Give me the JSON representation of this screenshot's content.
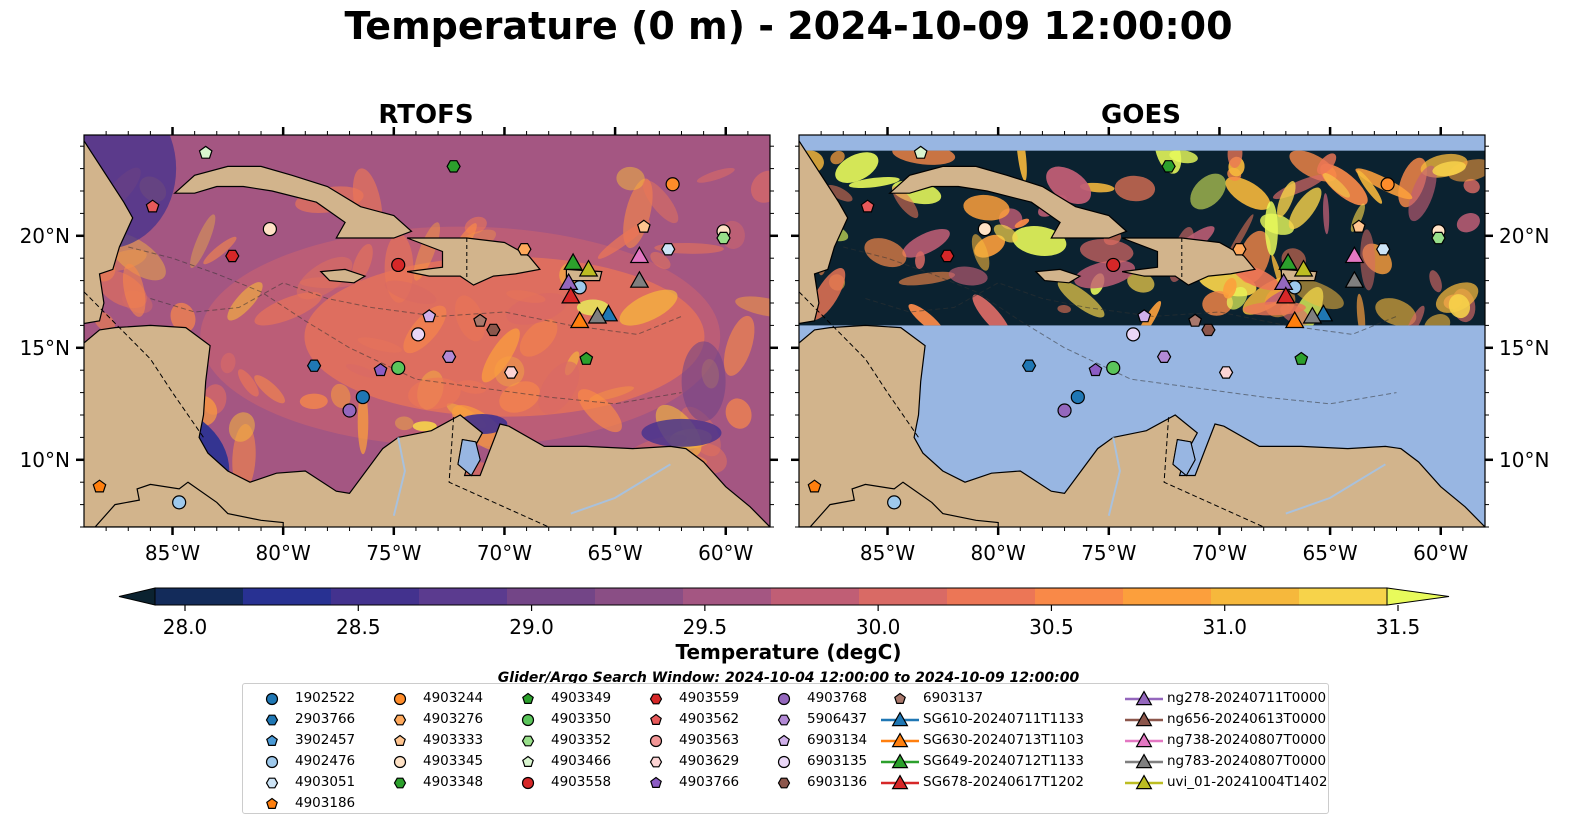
{
  "title": "Temperature (0 m) - 2024-10-09 12:00:00",
  "panels": [
    {
      "title": "RTOFS",
      "ocean": "rtofs"
    },
    {
      "title": "GOES",
      "ocean": "goes"
    }
  ],
  "map": {
    "lon_range": [
      -89,
      -58
    ],
    "lat_range": [
      7,
      24.5
    ],
    "lon_ticks": [
      -85,
      -80,
      -75,
      -70,
      -65,
      -60
    ],
    "lon_tick_labels": [
      "85°W",
      "80°W",
      "75°W",
      "70°W",
      "65°W",
      "60°W"
    ],
    "lat_ticks": [
      10,
      15,
      20
    ],
    "lat_tick_labels": [
      "10°N",
      "15°N",
      "20°N"
    ],
    "land_color": "#d2b48c",
    "nodata_color": "#98b6e2",
    "goes_data_lat_range": [
      16,
      23.8
    ]
  },
  "colorbar": {
    "label": "Temperature (degC)",
    "min": 28.0,
    "max": 31.5,
    "step": 0.25,
    "ticks": [
      28.0,
      28.5,
      29.0,
      29.5,
      30.0,
      30.5,
      31.0,
      31.5
    ],
    "tick_labels": [
      "28.0",
      "28.5",
      "29.0",
      "29.5",
      "30.0",
      "30.5",
      "31.0",
      "31.5"
    ],
    "colors": [
      "#0b2230",
      "#132b5a",
      "#283192",
      "#43328e",
      "#5b3b8f",
      "#734587",
      "#8a4e85",
      "#a45682",
      "#c05e75",
      "#d96a65",
      "#ec7656",
      "#f98948",
      "#fc9f3c",
      "#f6b83c",
      "#f7d34a",
      "#e8fa5b"
    ],
    "extend": "both"
  },
  "search_window": "Glider/Argo Search Window: 2024-10-04 12:00:00 to 2024-10-09 12:00:00",
  "legend_columns": [
    [
      {
        "label": "1902522",
        "marker": "circle",
        "color": "#1f77b4"
      },
      {
        "label": "2903766",
        "marker": "hexagon",
        "color": "#1f77b4"
      },
      {
        "label": "3902457",
        "marker": "pentagon",
        "color": "#4a9ad6"
      },
      {
        "label": "4902476",
        "marker": "circle",
        "color": "#9ec9ec"
      },
      {
        "label": "4903051",
        "marker": "hexagon",
        "color": "#cde4f6"
      },
      {
        "label": "4903186",
        "marker": "pentagon",
        "color": "#ff7f0e"
      }
    ],
    [
      {
        "label": "4903244",
        "marker": "circle",
        "color": "#ff8c2a"
      },
      {
        "label": "4903276",
        "marker": "hexagon",
        "color": "#ffa95c"
      },
      {
        "label": "4903333",
        "marker": "pentagon",
        "color": "#ffc48f"
      },
      {
        "label": "4903345",
        "marker": "circle",
        "color": "#ffe2c6"
      },
      {
        "label": "4903348",
        "marker": "hexagon",
        "color": "#2ca02c"
      }
    ],
    [
      {
        "label": "4903349",
        "marker": "pentagon",
        "color": "#2ca02c"
      },
      {
        "label": "4903350",
        "marker": "circle",
        "color": "#5bc55b"
      },
      {
        "label": "4903352",
        "marker": "hexagon",
        "color": "#98df8a"
      },
      {
        "label": "4903466",
        "marker": "pentagon",
        "color": "#d9f5cf"
      },
      {
        "label": "4903558",
        "marker": "circle",
        "color": "#d62728"
      }
    ],
    [
      {
        "label": "4903559",
        "marker": "hexagon",
        "color": "#d62728"
      },
      {
        "label": "4903562",
        "marker": "pentagon",
        "color": "#e8595a"
      },
      {
        "label": "4903563",
        "marker": "circle",
        "color": "#f29696"
      },
      {
        "label": "4903629",
        "marker": "hexagon",
        "color": "#fcd4d4"
      },
      {
        "label": "4903766",
        "marker": "pentagon",
        "color": "#8c5cc4"
      }
    ],
    [
      {
        "label": "4903768",
        "marker": "circle",
        "color": "#9467bd"
      },
      {
        "label": "5906437",
        "marker": "hexagon",
        "color": "#b38ad6"
      },
      {
        "label": "6903134",
        "marker": "pentagon",
        "color": "#d0b0ea"
      },
      {
        "label": "6903135",
        "marker": "circle",
        "color": "#ead7f7"
      },
      {
        "label": "6903136",
        "marker": "hexagon",
        "color": "#8c564b"
      }
    ],
    [
      {
        "label": "6903137",
        "marker": "pentagon",
        "color": "#a9786c"
      },
      {
        "label": "SG610-20240711T1133",
        "marker": "triangle-line",
        "color": "#1f77b4"
      },
      {
        "label": "SG630-20240713T1103",
        "marker": "triangle-line",
        "color": "#ff7f0e"
      },
      {
        "label": "SG649-20240712T1133",
        "marker": "triangle-line",
        "color": "#2ca02c"
      },
      {
        "label": "SG678-20240617T1202",
        "marker": "triangle-line",
        "color": "#d62728"
      }
    ],
    [
      {
        "label": "ng278-20240711T0000",
        "marker": "triangle-line",
        "color": "#9467bd"
      },
      {
        "label": "ng656-20240613T0000",
        "marker": "triangle-line",
        "color": "#8c564b"
      },
      {
        "label": "ng738-20240807T0000",
        "marker": "triangle-line",
        "color": "#e377c2"
      },
      {
        "label": "ng783-20240807T0000",
        "marker": "triangle-line",
        "color": "#7f7f7f"
      },
      {
        "label": "uvi_01-20241004T1402",
        "marker": "triangle-line",
        "color": "#bcbd22"
      }
    ]
  ],
  "observations": [
    {
      "lon": -88.3,
      "lat": 8.8,
      "marker": "pentagon",
      "color": "#ff7f0e"
    },
    {
      "lon": -84.7,
      "lat": 8.1,
      "marker": "circle",
      "color": "#9ec9ec"
    },
    {
      "lon": -83.5,
      "lat": 23.7,
      "marker": "pentagon",
      "color": "#d9f5cf"
    },
    {
      "lon": -85.9,
      "lat": 21.3,
      "marker": "pentagon",
      "color": "#e8595a"
    },
    {
      "lon": -82.3,
      "lat": 19.1,
      "marker": "hexagon",
      "color": "#d62728"
    },
    {
      "lon": -80.6,
      "lat": 20.3,
      "marker": "circle",
      "color": "#ffe2c6"
    },
    {
      "lon": -78.6,
      "lat": 14.2,
      "marker": "hexagon",
      "color": "#1f77b4"
    },
    {
      "lon": -77.0,
      "lat": 12.2,
      "marker": "circle",
      "color": "#9467bd"
    },
    {
      "lon": -76.4,
      "lat": 12.8,
      "marker": "circle",
      "color": "#1f77b4"
    },
    {
      "lon": -75.6,
      "lat": 14.0,
      "marker": "pentagon",
      "color": "#8c5cc4"
    },
    {
      "lon": -74.8,
      "lat": 14.1,
      "marker": "circle",
      "color": "#5bc55b"
    },
    {
      "lon": -74.8,
      "lat": 18.7,
      "marker": "circle",
      "color": "#d62728"
    },
    {
      "lon": -73.9,
      "lat": 15.6,
      "marker": "circle",
      "color": "#ead7f7"
    },
    {
      "lon": -73.4,
      "lat": 16.4,
      "marker": "pentagon",
      "color": "#d0b0ea"
    },
    {
      "lon": -72.5,
      "lat": 14.6,
      "marker": "hexagon",
      "color": "#b38ad6"
    },
    {
      "lon": -71.1,
      "lat": 16.2,
      "marker": "pentagon",
      "color": "#a9786c"
    },
    {
      "lon": -70.5,
      "lat": 15.8,
      "marker": "hexagon",
      "color": "#8c564b"
    },
    {
      "lon": -69.7,
      "lat": 13.9,
      "marker": "hexagon",
      "color": "#fcd4d4"
    },
    {
      "lon": -69.1,
      "lat": 19.4,
      "marker": "hexagon",
      "color": "#ffa95c"
    },
    {
      "lon": -66.3,
      "lat": 14.5,
      "marker": "pentagon",
      "color": "#2ca02c"
    },
    {
      "lon": -66.6,
      "lat": 17.7,
      "marker": "circle",
      "color": "#9ec9ec"
    },
    {
      "lon": -63.7,
      "lat": 20.4,
      "marker": "pentagon",
      "color": "#ffc48f"
    },
    {
      "lon": -62.4,
      "lat": 22.3,
      "marker": "circle",
      "color": "#ff8c2a"
    },
    {
      "lon": -62.6,
      "lat": 19.4,
      "marker": "hexagon",
      "color": "#cde4f6"
    },
    {
      "lon": -60.1,
      "lat": 20.2,
      "marker": "circle",
      "color": "#ffe2c6"
    },
    {
      "lon": -60.1,
      "lat": 19.9,
      "marker": "hexagon",
      "color": "#98df8a"
    },
    {
      "lon": -72.3,
      "lat": 23.1,
      "marker": "hexagon",
      "color": "#2ca02c"
    },
    {
      "lon": -66.9,
      "lat": 18.8,
      "marker": "triangle",
      "color": "#2ca02c"
    },
    {
      "lon": -66.2,
      "lat": 18.5,
      "marker": "triangle",
      "color": "#bcbd22"
    },
    {
      "lon": -67.1,
      "lat": 17.9,
      "marker": "triangle",
      "color": "#9467bd"
    },
    {
      "lon": -67.0,
      "lat": 17.3,
      "marker": "triangle",
      "color": "#d62728"
    },
    {
      "lon": -66.6,
      "lat": 16.2,
      "marker": "triangle",
      "color": "#ff7f0e"
    },
    {
      "lon": -65.3,
      "lat": 16.5,
      "marker": "triangle",
      "color": "#1f77b4"
    },
    {
      "lon": -65.8,
      "lat": 16.4,
      "marker": "triangle",
      "color": "#7f7f7f"
    },
    {
      "lon": -63.9,
      "lat": 18.0,
      "marker": "triangle",
      "color": "#7f7f7f"
    },
    {
      "lon": -63.9,
      "lat": 19.1,
      "marker": "triangle",
      "color": "#e377c2"
    }
  ]
}
